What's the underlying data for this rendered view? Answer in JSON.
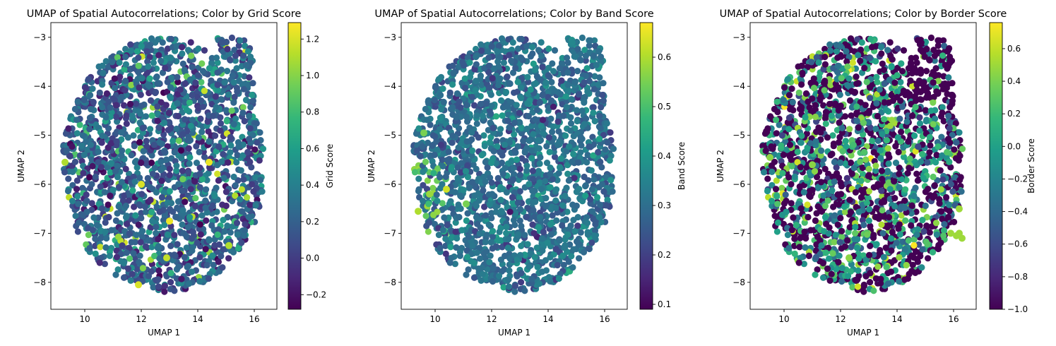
{
  "colormap": {
    "name": "viridis",
    "stops": [
      "#440154",
      "#482878",
      "#3e4a89",
      "#31688e",
      "#26828e",
      "#1f9e89",
      "#35b779",
      "#6ece58",
      "#b5de2b",
      "#fde725"
    ]
  },
  "chart_data": [
    {
      "type": "scatter",
      "title": "UMAP of Spatial Autocorrelations; Color by Grid Score",
      "xlabel": "UMAP 1",
      "ylabel": "UMAP 2",
      "colorbar_label": "Grid Score",
      "xlim": [
        8.8,
        16.8
      ],
      "ylim": [
        -8.55,
        -2.7
      ],
      "y_inverted": true,
      "xticks": [
        10,
        12,
        14,
        16
      ],
      "yticks": [
        -3,
        -4,
        -5,
        -6,
        -7,
        -8
      ],
      "clim": [
        -0.28,
        1.29
      ],
      "cticks": [
        -0.2,
        0.0,
        0.2,
        0.4,
        0.6,
        0.8,
        1.0,
        1.2
      ],
      "point_cloud": {
        "x_range": [
          9.1,
          16.5
        ],
        "y_range": [
          -8.25,
          -2.97
        ],
        "approx_count": 2000,
        "typical_value": 0.2,
        "value_spread": 0.2,
        "highlight": [
          {
            "x": 12.0,
            "y": -6.0,
            "value": 1.2
          },
          {
            "x": 14.4,
            "y": -5.55,
            "value": 1.25
          },
          {
            "x": 13.0,
            "y": -6.75,
            "value": 1.25
          },
          {
            "x": 12.9,
            "y": -7.5,
            "value": 1.15
          },
          {
            "x": 11.9,
            "y": -8.05,
            "value": 1.2
          },
          {
            "x": 15.1,
            "y": -7.25,
            "value": 1.1
          },
          {
            "x": 9.3,
            "y": -5.55,
            "value": 1.1
          }
        ]
      }
    },
    {
      "type": "scatter",
      "title": "UMAP of Spatial Autocorrelations; Color by Band Score",
      "xlabel": "UMAP 1",
      "ylabel": "UMAP 2",
      "colorbar_label": "Band Score",
      "xlim": [
        8.8,
        16.8
      ],
      "ylim": [
        -8.55,
        -2.7
      ],
      "y_inverted": true,
      "xticks": [
        10,
        12,
        14,
        16
      ],
      "yticks": [
        -3,
        -4,
        -5,
        -6,
        -7,
        -8
      ],
      "clim": [
        0.09,
        0.67
      ],
      "cticks": [
        0.1,
        0.2,
        0.3,
        0.4,
        0.5,
        0.6
      ],
      "point_cloud": {
        "x_range": [
          9.1,
          16.5
        ],
        "y_range": [
          -8.25,
          -2.97
        ],
        "approx_count": 2000,
        "typical_value": 0.3,
        "value_spread": 0.05,
        "highlight": [
          {
            "x": 10.4,
            "y": -6.1,
            "value": 0.63
          },
          {
            "x": 9.4,
            "y": -6.55,
            "value": 0.6
          },
          {
            "x": 9.8,
            "y": -6.2,
            "value": 0.58
          },
          {
            "x": 9.6,
            "y": -4.95,
            "value": 0.55
          },
          {
            "x": 11.1,
            "y": -6.4,
            "value": 0.55
          }
        ]
      }
    },
    {
      "type": "scatter",
      "title": "UMAP of Spatial Autocorrelations; Color by Border Score",
      "xlabel": "UMAP 1",
      "ylabel": "UMAP 2",
      "colorbar_label": "Border Score",
      "xlim": [
        8.8,
        16.8
      ],
      "ylim": [
        -8.55,
        -2.7
      ],
      "y_inverted": true,
      "xticks": [
        10,
        12,
        14,
        16
      ],
      "yticks": [
        -3,
        -4,
        -5,
        -6,
        -7,
        -8
      ],
      "clim": [
        -1.0,
        0.76
      ],
      "cticks": [
        -1.0,
        -0.8,
        -0.6,
        -0.4,
        -0.2,
        0.0,
        0.2,
        0.4,
        0.6
      ],
      "point_cloud": {
        "x_range": [
          9.1,
          16.5
        ],
        "y_range": [
          -8.25,
          -2.97
        ],
        "approx_count": 2000,
        "typical_value": -0.4,
        "value_spread": 0.5,
        "highlight": [
          {
            "x": 16.1,
            "y": -7.05,
            "value": 0.5
          },
          {
            "x": 16.3,
            "y": -7.1,
            "value": 0.5
          },
          {
            "x": 15.9,
            "y": -7.0,
            "value": 0.5
          },
          {
            "x": 16.2,
            "y": -7.0,
            "value": 0.5
          },
          {
            "x": 16.2,
            "y": -6.5,
            "value": 0.5
          },
          {
            "x": 11.0,
            "y": -5.6,
            "value": 0.45
          },
          {
            "x": 9.5,
            "y": -5.45,
            "value": 0.45
          },
          {
            "x": 12.3,
            "y": -7.5,
            "value": 0.45
          }
        ]
      }
    }
  ]
}
